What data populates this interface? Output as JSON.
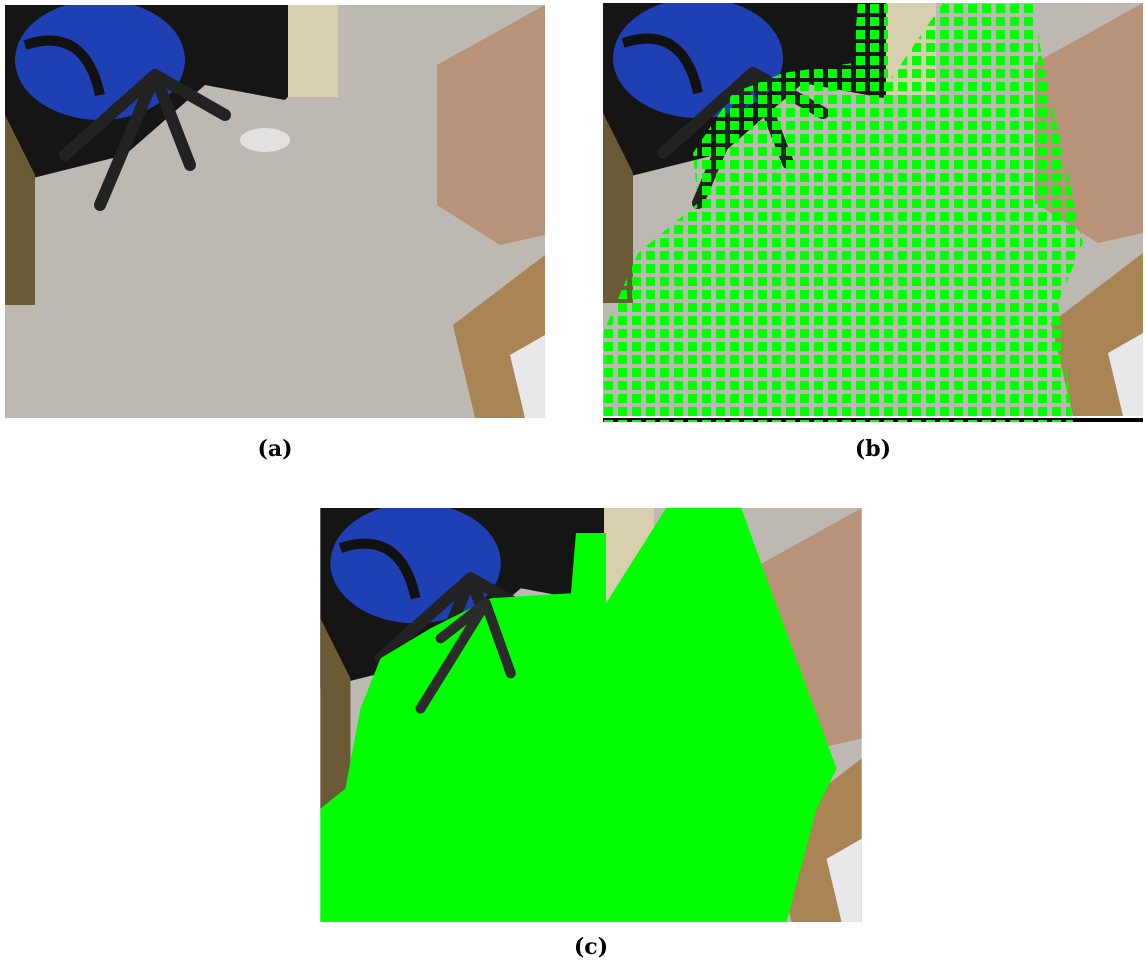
{
  "figure": {
    "panels": [
      {
        "label": "(a)"
      },
      {
        "label": "(b)"
      },
      {
        "label": "(c)"
      }
    ]
  }
}
